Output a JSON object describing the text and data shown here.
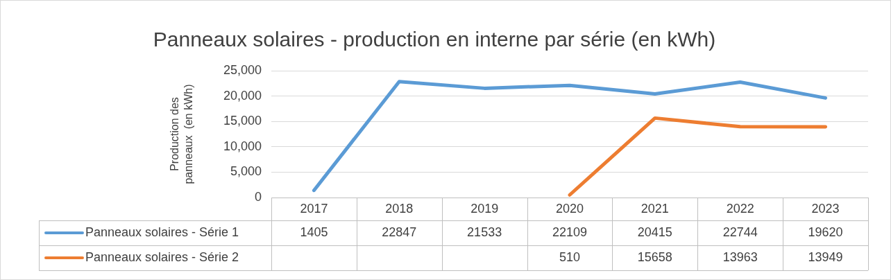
{
  "chart_data": {
    "type": "line",
    "title": "Panneaux solaires - production en interne par série (en kWh)",
    "ylabel": "Production des panneaux  (en kWh)",
    "categories": [
      "2017",
      "2018",
      "2019",
      "2020",
      "2021",
      "2022",
      "2023"
    ],
    "series": [
      {
        "name": "Panneaux solaires - Série 1",
        "color": "#5b9bd5",
        "values": [
          1405,
          22847,
          21533,
          22109,
          20415,
          22744,
          19620
        ]
      },
      {
        "name": "Panneaux solaires - Série 2",
        "color": "#ed7d31",
        "values": [
          null,
          null,
          null,
          510,
          15658,
          13963,
          13949
        ]
      }
    ],
    "ylim": [
      0,
      25000
    ],
    "yticks": [
      {
        "value": 0,
        "label": "0"
      },
      {
        "value": 5000,
        "label": "5,000"
      },
      {
        "value": 10000,
        "label": "10,000"
      },
      {
        "value": 15000,
        "label": "15,000"
      },
      {
        "value": 20000,
        "label": "20,000"
      },
      {
        "value": 25000,
        "label": "25,000"
      }
    ],
    "grid": "y",
    "legend": "bottom",
    "marker": "none",
    "line_style": "solid",
    "data_labels": true
  }
}
